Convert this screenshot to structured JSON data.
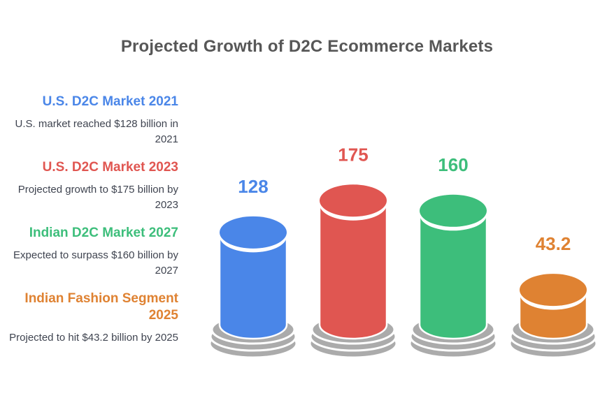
{
  "title": "Projected Growth of D2C Ecommerce Markets",
  "colors": {
    "title_text": "#575757",
    "description_text": "#3F4450",
    "pedestal_gray": "#ABABAB",
    "separator_white": "#FFFFFF",
    "background": "#FFFFFF"
  },
  "legend": [
    {
      "heading": "U.S. D2C Market 2021",
      "description": "U.S. market reached $128 billion in 2021"
    },
    {
      "heading": "U.S. D2C Market 2023",
      "description": "Projected growth to $175 billion by 2023"
    },
    {
      "heading": "Indian D2C Market 2027",
      "description": "Expected to surpass $160 billion by 2027"
    },
    {
      "heading": "Indian Fashion Segment 2025",
      "description": "Projected to hit $43.2 billion by 2025"
    }
  ],
  "chart_data": {
    "type": "bar",
    "style": "3d cylinder columns on gray pedestal discs",
    "title": "Projected Growth of D2C Ecommerce Markets",
    "categories": [
      "U.S. D2C Market 2021",
      "U.S. D2C Market 2023",
      "Indian D2C Market 2027",
      "Indian Fashion Segment 2025"
    ],
    "values": [
      128,
      175,
      160,
      43.2
    ],
    "value_labels": [
      "128",
      "175",
      "160",
      "43.2"
    ],
    "unit": "USD billions",
    "colors": [
      "#4A86E8",
      "#E05651",
      "#3DBE7B",
      "#DF8232"
    ],
    "axes": "none",
    "grid": false,
    "value_label_position": "above-bar",
    "legend_position": "left"
  }
}
